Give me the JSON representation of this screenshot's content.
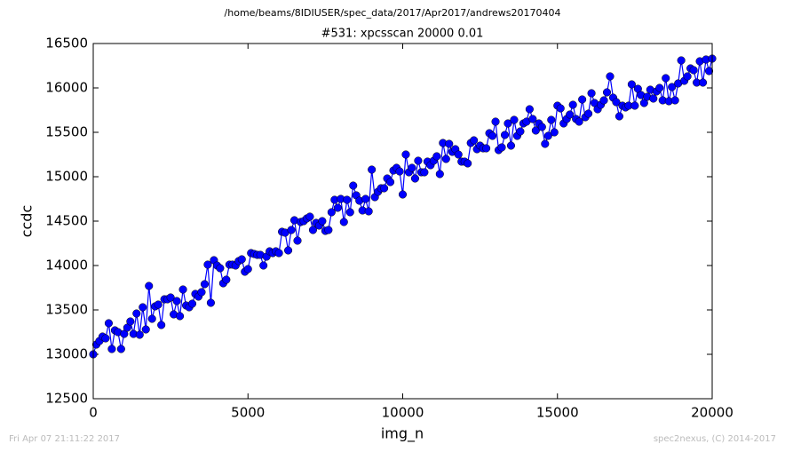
{
  "chart_data": {
    "type": "line",
    "suptitle": "/home/beams/8IDIUSER/spec_data/2017/Apr2017/andrews20170404",
    "title": "#531: xpcsscan 20000 0.01",
    "xlabel": "img_n",
    "ylabel": "ccdc",
    "footer_left": "Fri Apr 07 21:11:22 2017",
    "footer_right": "spec2nexus, (C) 2014-2017",
    "xlim": [
      0,
      20000
    ],
    "ylim": [
      12500,
      16500
    ],
    "xticks": [
      0,
      5000,
      10000,
      15000,
      20000
    ],
    "yticks": [
      12500,
      13000,
      13500,
      14000,
      14500,
      15000,
      15500,
      16000,
      16500
    ],
    "grid": false,
    "x": [
      0,
      100,
      200,
      300,
      400,
      500,
      600,
      700,
      800,
      900,
      1000,
      1100,
      1200,
      1300,
      1400,
      1500,
      1600,
      1700,
      1800,
      1900,
      2000,
      2100,
      2200,
      2300,
      2400,
      2500,
      2600,
      2700,
      2800,
      2900,
      3000,
      3100,
      3200,
      3300,
      3400,
      3500,
      3600,
      3700,
      3800,
      3900,
      4000,
      4100,
      4200,
      4300,
      4400,
      4500,
      4600,
      4700,
      4800,
      4900,
      5000,
      5100,
      5200,
      5300,
      5400,
      5500,
      5600,
      5700,
      5800,
      5900,
      6000,
      6100,
      6200,
      6300,
      6400,
      6500,
      6600,
      6700,
      6800,
      6900,
      7000,
      7100,
      7200,
      7300,
      7400,
      7500,
      7600,
      7700,
      7800,
      7900,
      8000,
      8100,
      8200,
      8300,
      8400,
      8500,
      8600,
      8700,
      8800,
      8900,
      9000,
      9100,
      9200,
      9300,
      9400,
      9500,
      9600,
      9700,
      9800,
      9900,
      10000,
      10100,
      10200,
      10300,
      10400,
      10500,
      10600,
      10700,
      10800,
      10900,
      11000,
      11100,
      11200,
      11300,
      11400,
      11500,
      11600,
      11700,
      11800,
      11900,
      12000,
      12100,
      12200,
      12300,
      12400,
      12500,
      12600,
      12700,
      12800,
      12900,
      13000,
      13100,
      13200,
      13300,
      13400,
      13500,
      13600,
      13700,
      13800,
      13900,
      14000,
      14100,
      14200,
      14300,
      14400,
      14500,
      14600,
      14700,
      14800,
      14900,
      15000,
      15100,
      15200,
      15300,
      15400,
      15500,
      15600,
      15700,
      15800,
      15900,
      16000,
      16100,
      16200,
      16300,
      16400,
      16500,
      16600,
      16700,
      16800,
      16900,
      17000,
      17100,
      17200,
      17300,
      17400,
      17500,
      17600,
      17700,
      17800,
      17900,
      18000,
      18100,
      18200,
      18300,
      18400,
      18500,
      18600,
      18700,
      18800,
      18900,
      19000,
      19100,
      19200,
      19300,
      19400,
      19500,
      19600,
      19700,
      19800,
      19900,
      20000
    ],
    "series": [
      {
        "name": "ccdc",
        "color": "#0000ff",
        "values": [
          13000,
          13110,
          13150,
          13200,
          13180,
          13350,
          13060,
          13270,
          13250,
          13060,
          13230,
          13300,
          13370,
          13230,
          13460,
          13220,
          13530,
          13280,
          13770,
          13400,
          13540,
          13560,
          13330,
          13620,
          13620,
          13640,
          13450,
          13600,
          13430,
          13730,
          13550,
          13530,
          13570,
          13680,
          13650,
          13700,
          13790,
          14010,
          13580,
          14060,
          14000,
          13970,
          13800,
          13840,
          14010,
          14010,
          14000,
          14050,
          14070,
          13930,
          13960,
          14140,
          14130,
          14120,
          14120,
          14000,
          14100,
          14160,
          14140,
          14160,
          14140,
          14380,
          14370,
          14170,
          14400,
          14510,
          14280,
          14490,
          14500,
          14530,
          14550,
          14400,
          14480,
          14450,
          14500,
          14390,
          14400,
          14600,
          14740,
          14650,
          14750,
          14490,
          14740,
          14600,
          14900,
          14790,
          14730,
          14620,
          14750,
          14610,
          15080,
          14770,
          14830,
          14870,
          14870,
          14980,
          14940,
          15070,
          15100,
          15060,
          14800,
          15250,
          15050,
          15100,
          14980,
          15180,
          15050,
          15050,
          15170,
          15130,
          15180,
          15230,
          15030,
          15380,
          15200,
          15370,
          15280,
          15310,
          15250,
          15170,
          15170,
          15150,
          15380,
          15410,
          15310,
          15350,
          15320,
          15320,
          15490,
          15460,
          15620,
          15300,
          15330,
          15470,
          15600,
          15350,
          15640,
          15460,
          15510,
          15600,
          15620,
          15760,
          15650,
          15520,
          15600,
          15560,
          15370,
          15460,
          15640,
          15500,
          15800,
          15770,
          15600,
          15650,
          15700,
          15810,
          15650,
          15620,
          15870,
          15670,
          15710,
          15940,
          15830,
          15760,
          15810,
          15860,
          15950,
          16130,
          15890,
          15840,
          15680,
          15800,
          15780,
          15800,
          16040,
          15800,
          15990,
          15920,
          15830,
          15900,
          15980,
          15880,
          15960,
          16000,
          15860,
          16110,
          15850,
          16010,
          15860,
          16050,
          16310,
          16080,
          16130,
          16220,
          16200,
          16060,
          16300,
          16060,
          16320,
          16190,
          16330
        ]
      }
    ]
  }
}
